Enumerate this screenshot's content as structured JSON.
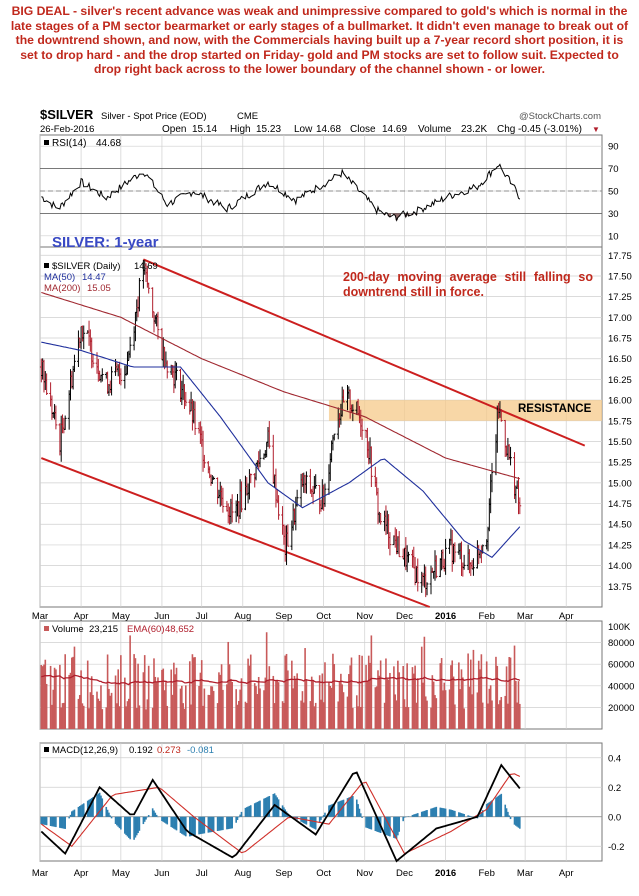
{
  "headline": "BIG DEAL - silver's recent advance was weak and unimpressive compared to gold's which is normal in the late stages of a PM sector bearmarket or early stages of a bullmarket. It didn't even manage to break out of the downtrend shown, and now, with the Commercials having built up a 7-year record short position, it is set to drop hard - and the drop started on Friday- gold and PM stocks are set to follow suit. Expected to drop right back across to the lower boundary of the channel shown - or lower.",
  "header": {
    "symbol": "$SILVER",
    "name": "Silver - Spot Price (EOD)",
    "exchange": "CME",
    "watermark": "@StockCharts.com",
    "date": "26-Feb-2016",
    "open_label": "Open",
    "open": "15.14",
    "high_label": "High",
    "high": "15.23",
    "low_label": "Low",
    "low": "14.68",
    "close_label": "Close",
    "close": "14.69",
    "volume_label": "Volume",
    "volume": "23.2K",
    "chg_label": "Chg",
    "chg": "-0.45 (-3.01%)",
    "chg_arrow": "▼"
  },
  "colors": {
    "headline": "#c0281c",
    "up_bar": "#000000",
    "down_bar": "#b01e2c",
    "ma50": "#1f2f9c",
    "ma200": "#a02830",
    "channel": "#cc1f1f",
    "resistance_band": "#f5c98a",
    "volume_bar": "#c85a5a",
    "ema60": "#b01e2c",
    "macd_hist": "#2c7fb0",
    "grid": "#cfcfcf",
    "rsi_shade": "#8a6a6a"
  },
  "chart_data": [
    {
      "type": "line",
      "panel": "RSI",
      "label": "RSI(14)",
      "value": "44.68",
      "ylim": [
        0,
        100
      ],
      "y_ticks": [
        "90",
        "70",
        "50",
        "30",
        "10"
      ],
      "x_months": [
        "Mar",
        "Apr",
        "May",
        "Jun",
        "Jul",
        "Aug",
        "Sep",
        "Oct",
        "Nov",
        "Dec",
        "2016",
        "Feb",
        "Mar",
        "Apr"
      ],
      "rsi_keypoints": [
        {
          "x": "2015-03-02",
          "y": 45
        },
        {
          "x": "2015-03-15",
          "y": 34
        },
        {
          "x": "2015-04-01",
          "y": 58
        },
        {
          "x": "2015-04-20",
          "y": 44
        },
        {
          "x": "2015-05-18",
          "y": 68
        },
        {
          "x": "2015-06-05",
          "y": 38
        },
        {
          "x": "2015-06-25",
          "y": 50
        },
        {
          "x": "2015-07-20",
          "y": 34
        },
        {
          "x": "2015-08-20",
          "y": 58
        },
        {
          "x": "2015-09-10",
          "y": 42
        },
        {
          "x": "2015-10-15",
          "y": 66
        },
        {
          "x": "2015-11-10",
          "y": 33
        },
        {
          "x": "2015-11-22",
          "y": 26
        },
        {
          "x": "2015-12-10",
          "y": 32
        },
        {
          "x": "2016-01-05",
          "y": 46
        },
        {
          "x": "2016-01-25",
          "y": 54
        },
        {
          "x": "2016-02-10",
          "y": 74
        },
        {
          "x": "2016-02-26",
          "y": 44.68
        }
      ]
    },
    {
      "type": "candlestick",
      "panel": "price",
      "title": "SILVER: 1-year",
      "legend": [
        {
          "name": "$SILVER (Daily)",
          "value": "14.69"
        },
        {
          "name": "MA(50)",
          "value": "14.47"
        },
        {
          "name": "MA(200)",
          "value": "15.05"
        }
      ],
      "annotation": "200-day moving average still falling so downtrend still in force.",
      "resistance_label": "RESISTANCE",
      "resistance_range": [
        15.75,
        16.0
      ],
      "ylim": [
        13.5,
        17.85
      ],
      "y_ticks": [
        "17.75",
        "17.50",
        "17.25",
        "17.00",
        "16.75",
        "16.50",
        "16.25",
        "16.00",
        "15.75",
        "15.50",
        "15.25",
        "15.00",
        "14.75",
        "14.50",
        "14.25",
        "14.00",
        "13.75"
      ],
      "x_months": [
        "Mar",
        "Apr",
        "May",
        "Jun",
        "Jul",
        "Aug",
        "Sep",
        "Oct",
        "Nov",
        "Dec",
        "2016",
        "Feb",
        "Mar",
        "Apr"
      ],
      "close_keypoints": [
        {
          "x": "2015-03-02",
          "y": 16.4
        },
        {
          "x": "2015-03-16",
          "y": 15.5
        },
        {
          "x": "2015-04-01",
          "y": 16.9
        },
        {
          "x": "2015-04-20",
          "y": 16.2
        },
        {
          "x": "2015-05-05",
          "y": 16.4
        },
        {
          "x": "2015-05-18",
          "y": 17.6
        },
        {
          "x": "2015-06-01",
          "y": 16.6
        },
        {
          "x": "2015-06-20",
          "y": 16.0
        },
        {
          "x": "2015-07-10",
          "y": 15.0
        },
        {
          "x": "2015-07-25",
          "y": 14.6
        },
        {
          "x": "2015-08-20",
          "y": 15.5
        },
        {
          "x": "2015-09-02",
          "y": 14.2
        },
        {
          "x": "2015-09-15",
          "y": 15.0
        },
        {
          "x": "2015-10-01",
          "y": 14.8
        },
        {
          "x": "2015-10-10",
          "y": 15.8
        },
        {
          "x": "2015-10-20",
          "y": 16.0
        },
        {
          "x": "2015-11-01",
          "y": 15.7
        },
        {
          "x": "2015-11-12",
          "y": 14.6
        },
        {
          "x": "2015-12-01",
          "y": 14.1
        },
        {
          "x": "2015-12-15",
          "y": 13.8
        },
        {
          "x": "2016-01-05",
          "y": 14.2
        },
        {
          "x": "2016-01-20",
          "y": 14.0
        },
        {
          "x": "2016-02-01",
          "y": 14.4
        },
        {
          "x": "2016-02-10",
          "y": 15.9
        },
        {
          "x": "2016-02-18",
          "y": 15.3
        },
        {
          "x": "2016-02-26",
          "y": 14.69
        }
      ],
      "ma50_keypoints": [
        {
          "x": "2015-03-02",
          "y": 16.7
        },
        {
          "x": "2015-04-01",
          "y": 16.6
        },
        {
          "x": "2015-05-10",
          "y": 16.4
        },
        {
          "x": "2015-06-15",
          "y": 16.4
        },
        {
          "x": "2015-07-15",
          "y": 15.8
        },
        {
          "x": "2015-08-20",
          "y": 15.0
        },
        {
          "x": "2015-09-15",
          "y": 14.7
        },
        {
          "x": "2015-10-20",
          "y": 15.0
        },
        {
          "x": "2015-11-15",
          "y": 15.3
        },
        {
          "x": "2015-12-15",
          "y": 14.9
        },
        {
          "x": "2016-01-15",
          "y": 14.3
        },
        {
          "x": "2016-02-05",
          "y": 14.1
        },
        {
          "x": "2016-02-26",
          "y": 14.47
        }
      ],
      "ma200_keypoints": [
        {
          "x": "2015-03-02",
          "y": 17.3
        },
        {
          "x": "2015-05-01",
          "y": 17.0
        },
        {
          "x": "2015-07-01",
          "y": 16.5
        },
        {
          "x": "2015-09-01",
          "y": 16.1
        },
        {
          "x": "2015-11-01",
          "y": 15.8
        },
        {
          "x": "2016-01-01",
          "y": 15.3
        },
        {
          "x": "2016-02-26",
          "y": 15.05
        }
      ],
      "channel_upper": [
        {
          "x": "2015-05-18",
          "y": 17.7
        },
        {
          "x": "2016-04-15",
          "y": 15.45
        }
      ],
      "channel_lower": [
        {
          "x": "2015-03-02",
          "y": 15.3
        },
        {
          "x": "2015-12-20",
          "y": 13.5
        }
      ]
    },
    {
      "type": "bar",
      "panel": "volume",
      "label": "Volume",
      "value": "23,215",
      "ema_label": "EMA(60)",
      "ema_value": "48,652",
      "ylim": [
        0,
        100000
      ],
      "y_ticks": [
        "100K",
        "80000",
        "60000",
        "40000",
        "20000"
      ],
      "x_months": [
        "Mar",
        "Apr",
        "May",
        "Jun",
        "Jul",
        "Aug",
        "Sep",
        "Oct",
        "Nov",
        "Dec",
        "2016",
        "Feb",
        "Mar",
        "Apr"
      ]
    },
    {
      "type": "line",
      "panel": "MACD",
      "label": "MACD(12,26,9)",
      "macd": "0.192",
      "signal": "0.273",
      "hist": "-0.081",
      "ylim": [
        -0.3,
        0.5
      ],
      "y_ticks": [
        "0.4",
        "0.2",
        "0.0",
        "-0.2"
      ],
      "x_months": [
        "Mar",
        "Apr",
        "May",
        "Jun",
        "Jul",
        "Aug",
        "Sep",
        "Oct",
        "Nov",
        "Dec",
        "2016",
        "Feb",
        "Mar",
        "Apr"
      ],
      "macd_keypoints": [
        {
          "x": "2015-03-02",
          "y": -0.1
        },
        {
          "x": "2015-03-20",
          "y": -0.25
        },
        {
          "x": "2015-04-15",
          "y": 0.2
        },
        {
          "x": "2015-05-10",
          "y": 0.0
        },
        {
          "x": "2015-05-25",
          "y": 0.25
        },
        {
          "x": "2015-06-20",
          "y": -0.1
        },
        {
          "x": "2015-07-25",
          "y": -0.28
        },
        {
          "x": "2015-08-25",
          "y": 0.08
        },
        {
          "x": "2015-09-25",
          "y": -0.12
        },
        {
          "x": "2015-10-25",
          "y": 0.32
        },
        {
          "x": "2015-11-25",
          "y": -0.3
        },
        {
          "x": "2015-12-25",
          "y": -0.08
        },
        {
          "x": "2016-01-25",
          "y": 0.0
        },
        {
          "x": "2016-02-12",
          "y": 0.35
        },
        {
          "x": "2016-02-26",
          "y": 0.192
        }
      ],
      "signal_keypoints": [
        {
          "x": "2015-03-02",
          "y": -0.05
        },
        {
          "x": "2015-03-25",
          "y": -0.2
        },
        {
          "x": "2015-04-25",
          "y": 0.15
        },
        {
          "x": "2015-05-30",
          "y": 0.2
        },
        {
          "x": "2015-06-25",
          "y": 0.0
        },
        {
          "x": "2015-08-01",
          "y": -0.25
        },
        {
          "x": "2015-09-05",
          "y": 0.0
        },
        {
          "x": "2015-10-05",
          "y": -0.05
        },
        {
          "x": "2015-11-01",
          "y": 0.25
        },
        {
          "x": "2015-12-01",
          "y": -0.25
        },
        {
          "x": "2016-01-05",
          "y": -0.1
        },
        {
          "x": "2016-02-01",
          "y": 0.05
        },
        {
          "x": "2016-02-20",
          "y": 0.3
        },
        {
          "x": "2016-02-26",
          "y": 0.273
        }
      ]
    }
  ]
}
